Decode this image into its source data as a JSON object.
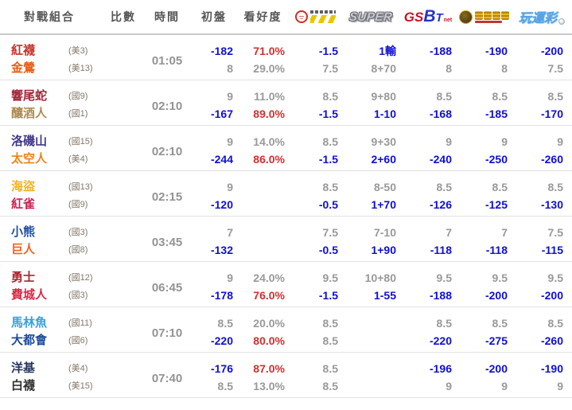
{
  "colors": {
    "highlight_blue": "#0f0fd8",
    "hot_red": "#d22f2f",
    "muted_gray": "#999999",
    "header_gray": "#555555"
  },
  "table": {
    "headers": {
      "matchup": "對戰組合",
      "score": "比數",
      "time": "時間",
      "initial": "初盤",
      "confidence": "看好度"
    },
    "bookmakers": [
      {
        "id": "red-seal-lottery",
        "label": ""
      },
      {
        "id": "super",
        "label": "SUPER"
      },
      {
        "id": "gsbet",
        "label_gs": "GS",
        "label_b": "B",
        "label_t": "T",
        "label_net": "net"
      },
      {
        "id": "gold-coin-casino",
        "label": ""
      },
      {
        "id": "playsport",
        "label": "玩運彩"
      }
    ]
  },
  "rows": [
    {
      "time": "01:05",
      "teams": [
        {
          "name": "紅襪",
          "record": "(美3)",
          "color": "#c4332d"
        },
        {
          "name": "金鶯",
          "record": "(美13)",
          "color": "#e55c14"
        }
      ],
      "score": [
        "",
        ""
      ],
      "initial": [
        {
          "v": "-182",
          "c": "blue"
        },
        {
          "v": "8"
        }
      ],
      "confidence": [
        {
          "v": "71.0%",
          "c": "red"
        },
        {
          "v": "29.0%"
        }
      ],
      "odds": [
        [
          {
            "v": "-1.5",
            "c": "blue"
          },
          {
            "v": "7.5"
          }
        ],
        [
          {
            "v": "1輸",
            "c": "blue"
          },
          {
            "v": "8+70"
          }
        ],
        [
          {
            "v": "-188",
            "c": "blue"
          },
          {
            "v": "8"
          }
        ],
        [
          {
            "v": "-190",
            "c": "blue"
          },
          {
            "v": "8"
          }
        ],
        [
          {
            "v": "-200",
            "c": "blue"
          },
          {
            "v": "7.5"
          }
        ]
      ]
    },
    {
      "time": "02:10",
      "teams": [
        {
          "name": "響尾蛇",
          "record": "(國9)",
          "color": "#a32638"
        },
        {
          "name": "釀酒人",
          "record": "(國1)",
          "color": "#ad8c52"
        }
      ],
      "score": [
        "",
        ""
      ],
      "initial": [
        {
          "v": "9"
        },
        {
          "v": "-167",
          "c": "blue"
        }
      ],
      "confidence": [
        {
          "v": "11.0%"
        },
        {
          "v": "89.0%",
          "c": "red"
        }
      ],
      "odds": [
        [
          {
            "v": "8.5"
          },
          {
            "v": "-1.5",
            "c": "blue"
          }
        ],
        [
          {
            "v": "9+80"
          },
          {
            "v": "1-10",
            "c": "blue"
          }
        ],
        [
          {
            "v": "8.5"
          },
          {
            "v": "-168",
            "c": "blue"
          }
        ],
        [
          {
            "v": "8.5"
          },
          {
            "v": "-185",
            "c": "blue"
          }
        ],
        [
          {
            "v": "8.5"
          },
          {
            "v": "-170",
            "c": "blue"
          }
        ]
      ]
    },
    {
      "time": "02:10",
      "teams": [
        {
          "name": "洛磯山",
          "record": "(國15)",
          "color": "#413a8a"
        },
        {
          "name": "太空人",
          "record": "(美4)",
          "color": "#ef8318"
        }
      ],
      "score": [
        "",
        ""
      ],
      "initial": [
        {
          "v": "9"
        },
        {
          "v": "-244",
          "c": "blue"
        }
      ],
      "confidence": [
        {
          "v": "14.0%"
        },
        {
          "v": "86.0%",
          "c": "red"
        }
      ],
      "odds": [
        [
          {
            "v": "8.5"
          },
          {
            "v": "-1.5",
            "c": "blue"
          }
        ],
        [
          {
            "v": "9+30"
          },
          {
            "v": "2+60",
            "c": "blue"
          }
        ],
        [
          {
            "v": "9"
          },
          {
            "v": "-240",
            "c": "blue"
          }
        ],
        [
          {
            "v": "9"
          },
          {
            "v": "-250",
            "c": "blue"
          }
        ],
        [
          {
            "v": "9"
          },
          {
            "v": "-260",
            "c": "blue"
          }
        ]
      ]
    },
    {
      "time": "02:15",
      "teams": [
        {
          "name": "海盜",
          "record": "(國13)",
          "color": "#f2b220"
        },
        {
          "name": "紅雀",
          "record": "(國9)",
          "color": "#cb2353"
        }
      ],
      "score": [
        "",
        ""
      ],
      "initial": [
        {
          "v": "9"
        },
        {
          "v": "-120",
          "c": "blue"
        }
      ],
      "confidence": [
        {
          "v": ""
        },
        {
          "v": ""
        }
      ],
      "odds": [
        [
          {
            "v": "8.5"
          },
          {
            "v": "-0.5",
            "c": "blue"
          }
        ],
        [
          {
            "v": "8-50"
          },
          {
            "v": "1+70",
            "c": "blue"
          }
        ],
        [
          {
            "v": "8.5"
          },
          {
            "v": "-126",
            "c": "blue"
          }
        ],
        [
          {
            "v": "8.5"
          },
          {
            "v": "-125",
            "c": "blue"
          }
        ],
        [
          {
            "v": "8.5"
          },
          {
            "v": "-130",
            "c": "blue"
          }
        ]
      ]
    },
    {
      "time": "03:45",
      "teams": [
        {
          "name": "小熊",
          "record": "(國3)",
          "color": "#2051a5"
        },
        {
          "name": "巨人",
          "record": "(國8)",
          "color": "#f2611c"
        }
      ],
      "score": [
        "",
        ""
      ],
      "initial": [
        {
          "v": "7"
        },
        {
          "v": "-132",
          "c": "blue"
        }
      ],
      "confidence": [
        {
          "v": ""
        },
        {
          "v": ""
        }
      ],
      "odds": [
        [
          {
            "v": "7.5"
          },
          {
            "v": "-0.5",
            "c": "blue"
          }
        ],
        [
          {
            "v": "7-10"
          },
          {
            "v": "1+90",
            "c": "blue"
          }
        ],
        [
          {
            "v": "7"
          },
          {
            "v": "-118",
            "c": "blue"
          }
        ],
        [
          {
            "v": "7"
          },
          {
            "v": "-118",
            "c": "blue"
          }
        ],
        [
          {
            "v": "7.5"
          },
          {
            "v": "-115",
            "c": "blue"
          }
        ]
      ]
    },
    {
      "time": "06:45",
      "teams": [
        {
          "name": "勇士",
          "record": "(國12)",
          "color": "#aa2430"
        },
        {
          "name": "費城人",
          "record": "(國3)",
          "color": "#dd2743"
        }
      ],
      "score": [
        "",
        ""
      ],
      "initial": [
        {
          "v": "9"
        },
        {
          "v": "-178",
          "c": "blue"
        }
      ],
      "confidence": [
        {
          "v": "24.0%"
        },
        {
          "v": "76.0%",
          "c": "red"
        }
      ],
      "odds": [
        [
          {
            "v": "9.5"
          },
          {
            "v": "-1.5",
            "c": "blue"
          }
        ],
        [
          {
            "v": "10+80"
          },
          {
            "v": "1-55",
            "c": "blue"
          }
        ],
        [
          {
            "v": "9.5"
          },
          {
            "v": "-188",
            "c": "blue"
          }
        ],
        [
          {
            "v": "9.5"
          },
          {
            "v": "-200",
            "c": "blue"
          }
        ],
        [
          {
            "v": "9.5"
          },
          {
            "v": "-200",
            "c": "blue"
          }
        ]
      ]
    },
    {
      "time": "07:10",
      "teams": [
        {
          "name": "馬林魚",
          "record": "(國11)",
          "color": "#3aa0dc"
        },
        {
          "name": "大都會",
          "record": "(國6)",
          "color": "#1e4c9c"
        }
      ],
      "score": [
        "",
        ""
      ],
      "initial": [
        {
          "v": "8.5"
        },
        {
          "v": "-220",
          "c": "blue"
        }
      ],
      "confidence": [
        {
          "v": "20.0%"
        },
        {
          "v": "80.0%",
          "c": "red"
        }
      ],
      "odds": [
        [
          {
            "v": "8.5"
          },
          {
            "v": "8.5"
          }
        ],
        [
          {
            "v": ""
          },
          {
            "v": ""
          }
        ],
        [
          {
            "v": "8.5"
          },
          {
            "v": "-220",
            "c": "blue"
          }
        ],
        [
          {
            "v": "8.5"
          },
          {
            "v": "-275",
            "c": "blue"
          }
        ],
        [
          {
            "v": "8.5"
          },
          {
            "v": "-260",
            "c": "blue"
          }
        ]
      ]
    },
    {
      "time": "07:40",
      "teams": [
        {
          "name": "洋基",
          "record": "(美4)",
          "color": "#25365e"
        },
        {
          "name": "白襪",
          "record": "(美15)",
          "color": "#333333"
        }
      ],
      "score": [
        "",
        ""
      ],
      "initial": [
        {
          "v": "-176",
          "c": "blue"
        },
        {
          "v": "8.5"
        }
      ],
      "confidence": [
        {
          "v": "87.0%",
          "c": "red"
        },
        {
          "v": "13.0%"
        }
      ],
      "odds": [
        [
          {
            "v": "8.5"
          },
          {
            "v": "8.5"
          }
        ],
        [
          {
            "v": ""
          },
          {
            "v": ""
          }
        ],
        [
          {
            "v": "-196",
            "c": "blue"
          },
          {
            "v": "9"
          }
        ],
        [
          {
            "v": "-200",
            "c": "blue"
          },
          {
            "v": "9"
          }
        ],
        [
          {
            "v": "-190",
            "c": "blue"
          },
          {
            "v": "9"
          }
        ]
      ]
    }
  ]
}
